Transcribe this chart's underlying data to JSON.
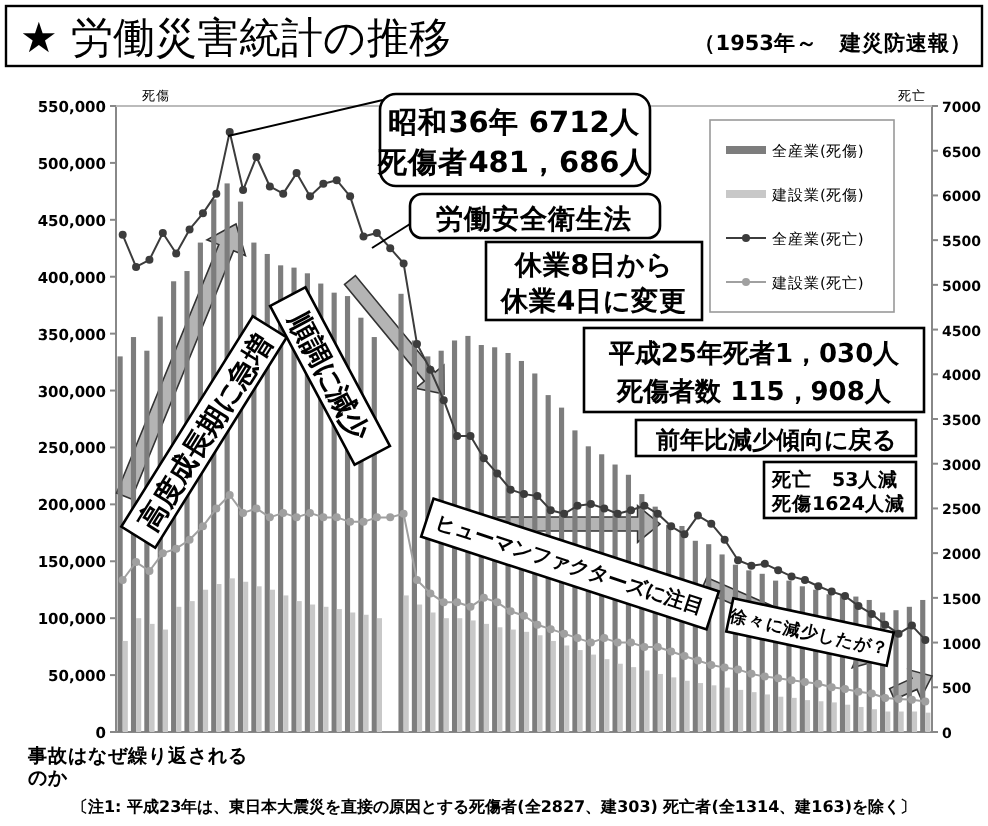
{
  "chart_data": {
    "type": "bar",
    "title": "★ 労働災害統計の推移",
    "subtitle": "（1953年～　建災防速報）",
    "ylabel": "死傷",
    "y2label": "死亡",
    "categories": [
      null,
      null,
      null,
      null,
      null,
      null,
      null,
      null,
      null,
      null,
      null,
      null,
      null,
      null,
      null,
      null,
      null,
      null,
      null,
      null,
      null,
      null,
      null,
      null,
      null,
      null,
      null,
      null,
      null,
      null,
      null,
      null,
      null,
      null,
      null,
      null,
      null,
      null,
      null,
      null,
      null,
      null,
      null,
      null,
      null,
      null,
      null,
      null,
      null,
      null,
      null,
      null,
      null,
      null,
      null,
      null,
      null,
      null,
      null,
      null,
      null
    ],
    "series": [
      {
        "name": "全産業(死傷)",
        "color": "#7d7d7d",
        "values": [
          330000,
          347000,
          335000,
          365000,
          396000,
          405000,
          430000,
          468000,
          482000,
          466000,
          430000,
          420000,
          410000,
          408000,
          403000,
          394000,
          386000,
          383000,
          364000,
          347000,
          null,
          385000,
          344000,
          330000,
          335000,
          344000,
          348000,
          340000,
          338000,
          333000,
          326000,
          315000,
          296000,
          285000,
          265000,
          251000,
          244000,
          235000,
          226000,
          209000,
          198000,
          182000,
          181000,
          168000,
          165000,
          156000,
          147000,
          142000,
          139000,
          133000,
          133000,
          128000,
          125000,
          121000,
          121000,
          119000,
          116000,
          105000,
          107000,
          110000,
          116000
        ]
      },
      {
        "name": "建設業(死傷)",
        "color": "#c8c8c8",
        "values": [
          80000,
          100000,
          95000,
          90000,
          110000,
          115000,
          125000,
          130000,
          135000,
          132000,
          128000,
          125000,
          120000,
          115000,
          112000,
          110000,
          108000,
          105000,
          103000,
          100000,
          null,
          120000,
          112000,
          105000,
          100000,
          100000,
          98000,
          95000,
          92000,
          90000,
          88000,
          85000,
          80000,
          76000,
          72000,
          68000,
          64000,
          60000,
          57000,
          54000,
          51000,
          48000,
          45000,
          43000,
          41000,
          39000,
          37000,
          35000,
          33000,
          31000,
          30000,
          28000,
          27000,
          26000,
          24000,
          22000,
          20000,
          18000,
          18000,
          18000,
          17000
        ]
      },
      {
        "name": "全産業(死亡)",
        "type": "line",
        "axis": "y2",
        "color": "#3c3c3c",
        "values": [
          5560,
          5200,
          5280,
          5580,
          5350,
          5620,
          5800,
          6020,
          6710,
          6060,
          6430,
          6100,
          6020,
          6250,
          5990,
          6130,
          6170,
          5990,
          5540,
          5580,
          5410,
          5240,
          4340,
          4050,
          3710,
          3310,
          3310,
          3060,
          2890,
          2710,
          2660,
          2640,
          2480,
          2440,
          2530,
          2550,
          2500,
          2440,
          2480,
          2530,
          2440,
          2300,
          2210,
          2420,
          2330,
          2150,
          1920,
          1860,
          1880,
          1810,
          1740,
          1700,
          1630,
          1570,
          1520,
          1410,
          1320,
          1200,
          1100,
          1190,
          1030
        ]
      },
      {
        "name": "建設業(死亡)",
        "type": "line",
        "axis": "y2",
        "color": "#a0a0a0",
        "values": [
          1700,
          1900,
          1800,
          2000,
          2050,
          2150,
          2300,
          2500,
          2650,
          2450,
          2500,
          2400,
          2450,
          2400,
          2450,
          2400,
          2400,
          2350,
          2350,
          2400,
          2400,
          2440,
          1700,
          1550,
          1450,
          1450,
          1400,
          1500,
          1450,
          1350,
          1300,
          1200,
          1150,
          1100,
          1050,
          1000,
          1050,
          1000,
          1000,
          950,
          950,
          900,
          850,
          800,
          750,
          720,
          700,
          650,
          620,
          600,
          580,
          560,
          540,
          500,
          480,
          450,
          430,
          380,
          370,
          360,
          340
        ]
      }
    ],
    "ylim": [
      0,
      550000
    ],
    "yticks": [
      {
        "value": 0,
        "label": "0"
      },
      {
        "value": 50000,
        "label": "50,000"
      },
      {
        "value": 100000,
        "label": "100,000"
      },
      {
        "value": 150000,
        "label": "150,000"
      },
      {
        "value": 200000,
        "label": "200,000"
      },
      {
        "value": 250000,
        "label": "250,000"
      },
      {
        "value": 300000,
        "label": "300,000"
      },
      {
        "value": 350000,
        "label": "350,000"
      },
      {
        "value": 400000,
        "label": "400,000"
      },
      {
        "value": 450000,
        "label": "450,000"
      },
      {
        "value": 500000,
        "label": "500,000"
      },
      {
        "value": 550000,
        "label": "550,000"
      }
    ],
    "y2lim": [
      0,
      7000
    ],
    "y2ticks": [
      0,
      500,
      1000,
      1500,
      2000,
      2500,
      3000,
      3500,
      4000,
      4500,
      5000,
      5500,
      6000,
      6500,
      7000
    ],
    "legend": "top right",
    "marker": "circle",
    "annotations": [
      "昭和36年 6712人",
      "死傷者481，686人",
      "労働安全衛生法",
      "休業8日から",
      "休業4日に変更",
      "平成25年死者1，030人",
      "死傷者数 115，908人",
      "前年比減少傾向に戻る",
      "死亡　53人減",
      "死傷1624人減",
      "高度成長期に急増",
      "順調に減少",
      "ヒューマンファクターズに注目",
      "徐々に減少したが？",
      "事故はなぜ繰り返される",
      "のか",
      "〔注1: 平成23年は、東日本大震災を直接の原因とする死傷者(全2827、建303) 死亡者(全1314、建163)を除く〕"
    ]
  }
}
